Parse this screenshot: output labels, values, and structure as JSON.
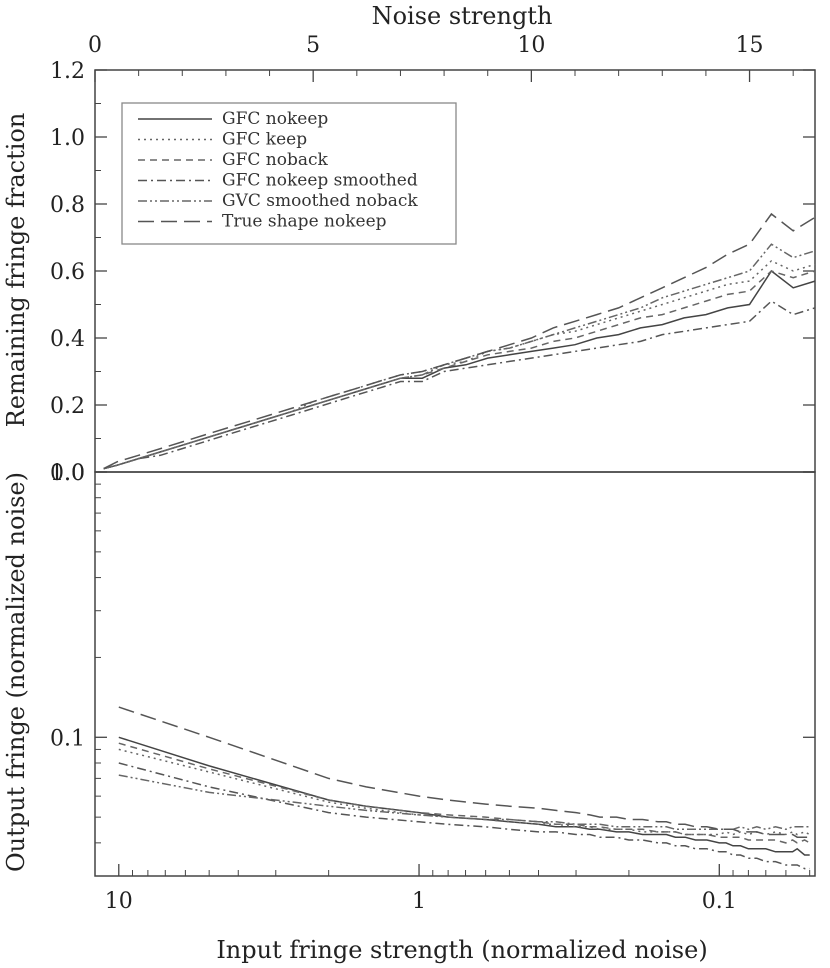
{
  "chart_data": [
    {
      "type": "line",
      "panel": "top",
      "top_axis": {
        "label": "Noise strength",
        "ticks": [
          0,
          5,
          10,
          15
        ],
        "range": [
          0,
          16.5
        ]
      },
      "ylabel": "Remaining fringe fraction",
      "ylim": [
        0,
        1.2
      ],
      "yticks": [
        0.0,
        0.2,
        0.4,
        0.6,
        0.8,
        1.0,
        1.2
      ],
      "ytick_labels": [
        "0.0",
        "0.2",
        "0.4",
        "0.6",
        "0.8",
        "1.0",
        "1.2"
      ],
      "legend_position": "top-left",
      "x": [
        0.2,
        0.5,
        1,
        1.5,
        2,
        2.5,
        3,
        3.5,
        4,
        4.5,
        5,
        5.5,
        6,
        6.5,
        7,
        7.5,
        8,
        8.5,
        9,
        9.5,
        10,
        10.5,
        11,
        11.5,
        12,
        12.5,
        13,
        13.5,
        14,
        14.5,
        15,
        15.5,
        16,
        16.5
      ],
      "series": [
        {
          "name": "GFC nokeep",
          "dash": "solid",
          "values": [
            0.01,
            0.02,
            0.04,
            0.06,
            0.08,
            0.1,
            0.12,
            0.14,
            0.16,
            0.18,
            0.2,
            0.22,
            0.24,
            0.26,
            0.28,
            0.28,
            0.31,
            0.32,
            0.34,
            0.35,
            0.36,
            0.37,
            0.38,
            0.4,
            0.41,
            0.43,
            0.44,
            0.46,
            0.47,
            0.49,
            0.5,
            0.6,
            0.55,
            0.57
          ]
        },
        {
          "name": "GFC keep",
          "dash": "dotted",
          "values": [
            0.01,
            0.02,
            0.04,
            0.06,
            0.08,
            0.1,
            0.12,
            0.14,
            0.16,
            0.18,
            0.21,
            0.23,
            0.25,
            0.27,
            0.29,
            0.3,
            0.32,
            0.33,
            0.36,
            0.37,
            0.39,
            0.41,
            0.42,
            0.44,
            0.46,
            0.48,
            0.5,
            0.52,
            0.54,
            0.56,
            0.57,
            0.63,
            0.6,
            0.62
          ]
        },
        {
          "name": "GFC noback",
          "dash": "dashed",
          "values": [
            0.01,
            0.02,
            0.04,
            0.06,
            0.08,
            0.1,
            0.12,
            0.14,
            0.16,
            0.18,
            0.2,
            0.22,
            0.24,
            0.26,
            0.28,
            0.29,
            0.31,
            0.33,
            0.35,
            0.36,
            0.37,
            0.39,
            0.4,
            0.42,
            0.44,
            0.46,
            0.47,
            0.49,
            0.51,
            0.53,
            0.54,
            0.6,
            0.58,
            0.6
          ]
        },
        {
          "name": "GFC nokeep smoothed",
          "dash": "dashdot",
          "values": [
            0.01,
            0.02,
            0.04,
            0.05,
            0.07,
            0.09,
            0.11,
            0.13,
            0.15,
            0.17,
            0.19,
            0.21,
            0.23,
            0.25,
            0.27,
            0.27,
            0.3,
            0.31,
            0.32,
            0.33,
            0.34,
            0.35,
            0.36,
            0.37,
            0.38,
            0.39,
            0.41,
            0.42,
            0.43,
            0.44,
            0.45,
            0.51,
            0.47,
            0.49
          ]
        },
        {
          "name": "GVC smoothed noback",
          "dash": "dashdotdot",
          "values": [
            0.01,
            0.02,
            0.04,
            0.06,
            0.08,
            0.1,
            0.12,
            0.14,
            0.16,
            0.18,
            0.2,
            0.22,
            0.24,
            0.26,
            0.28,
            0.29,
            0.32,
            0.34,
            0.36,
            0.37,
            0.39,
            0.41,
            0.43,
            0.45,
            0.47,
            0.49,
            0.52,
            0.54,
            0.56,
            0.58,
            0.6,
            0.68,
            0.64,
            0.66
          ]
        },
        {
          "name": "True shape nokeep",
          "dash": "longdash",
          "values": [
            0.01,
            0.03,
            0.05,
            0.07,
            0.09,
            0.11,
            0.13,
            0.15,
            0.17,
            0.19,
            0.21,
            0.23,
            0.25,
            0.27,
            0.29,
            0.3,
            0.32,
            0.34,
            0.36,
            0.38,
            0.4,
            0.43,
            0.45,
            0.47,
            0.49,
            0.52,
            0.55,
            0.58,
            0.61,
            0.65,
            0.68,
            0.77,
            0.72,
            0.76
          ]
        }
      ]
    },
    {
      "type": "line",
      "panel": "bottom",
      "xlabel": "Input fringe strength (normalized noise)",
      "ylabel": "Output fringe (normalized noise)",
      "y_scale": "log",
      "ylim": [
        0.03,
        1.0
      ],
      "yticks": [
        0.1,
        1.0
      ],
      "ytick_labels": [
        "0.1",
        "1.0"
      ],
      "xticks": [
        10,
        1,
        0.1
      ],
      "xtick_labels": [
        "10",
        "1",
        "0.1"
      ],
      "x": [
        10,
        5,
        2,
        1.5,
        1,
        0.8,
        0.6,
        0.5,
        0.4,
        0.35,
        0.3,
        0.27,
        0.25,
        0.22,
        0.2,
        0.18,
        0.16,
        0.15,
        0.14,
        0.13,
        0.12,
        0.11,
        0.1,
        0.095,
        0.09,
        0.085,
        0.08,
        0.075,
        0.07,
        0.065,
        0.06,
        0.057,
        0.055,
        0.052,
        0.05
      ],
      "series": [
        {
          "name": "GFC nokeep",
          "dash": "solid",
          "values": [
            0.1,
            0.078,
            0.058,
            0.055,
            0.052,
            0.05,
            0.049,
            0.048,
            0.047,
            0.046,
            0.046,
            0.045,
            0.045,
            0.044,
            0.044,
            0.043,
            0.043,
            0.043,
            0.042,
            0.042,
            0.041,
            0.041,
            0.04,
            0.04,
            0.039,
            0.039,
            0.038,
            0.038,
            0.038,
            0.037,
            0.037,
            0.037,
            0.038,
            0.036,
            0.036
          ]
        },
        {
          "name": "GFC keep",
          "dash": "dotted",
          "values": [
            0.09,
            0.074,
            0.057,
            0.054,
            0.051,
            0.05,
            0.049,
            0.048,
            0.047,
            0.047,
            0.046,
            0.046,
            0.045,
            0.045,
            0.045,
            0.044,
            0.044,
            0.044,
            0.044,
            0.043,
            0.043,
            0.043,
            0.043,
            0.044,
            0.043,
            0.044,
            0.043,
            0.044,
            0.043,
            0.044,
            0.043,
            0.044,
            0.043,
            0.044,
            0.043
          ]
        },
        {
          "name": "GFC noback",
          "dash": "dashed",
          "values": [
            0.095,
            0.076,
            0.058,
            0.055,
            0.052,
            0.051,
            0.05,
            0.049,
            0.048,
            0.047,
            0.047,
            0.046,
            0.046,
            0.045,
            0.045,
            0.045,
            0.044,
            0.044,
            0.044,
            0.043,
            0.043,
            0.043,
            0.042,
            0.042,
            0.042,
            0.042,
            0.041,
            0.041,
            0.041,
            0.041,
            0.04,
            0.041,
            0.04,
            0.041,
            0.04
          ]
        },
        {
          "name": "GFC nokeep smoothed",
          "dash": "dashdot",
          "values": [
            0.08,
            0.065,
            0.052,
            0.05,
            0.048,
            0.047,
            0.046,
            0.045,
            0.044,
            0.044,
            0.043,
            0.043,
            0.042,
            0.042,
            0.041,
            0.041,
            0.04,
            0.04,
            0.039,
            0.039,
            0.038,
            0.038,
            0.037,
            0.037,
            0.036,
            0.036,
            0.035,
            0.035,
            0.034,
            0.034,
            0.033,
            0.033,
            0.033,
            0.032,
            0.032
          ]
        },
        {
          "name": "GVC smoothed noback",
          "dash": "dashdotdot",
          "values": [
            0.072,
            0.062,
            0.055,
            0.053,
            0.051,
            0.05,
            0.049,
            0.049,
            0.048,
            0.048,
            0.047,
            0.047,
            0.047,
            0.046,
            0.046,
            0.046,
            0.046,
            0.046,
            0.045,
            0.045,
            0.045,
            0.045,
            0.045,
            0.045,
            0.045,
            0.046,
            0.045,
            0.046,
            0.045,
            0.046,
            0.045,
            0.046,
            0.046,
            0.046,
            0.046
          ]
        },
        {
          "name": "True shape nokeep",
          "dash": "longdash",
          "values": [
            0.13,
            0.1,
            0.07,
            0.065,
            0.06,
            0.058,
            0.056,
            0.055,
            0.054,
            0.053,
            0.052,
            0.051,
            0.05,
            0.05,
            0.049,
            0.049,
            0.048,
            0.048,
            0.047,
            0.047,
            0.046,
            0.046,
            0.045,
            0.045,
            0.045,
            0.044,
            0.044,
            0.044,
            0.043,
            0.043,
            0.043,
            0.043,
            0.042,
            0.042,
            0.042
          ]
        }
      ]
    }
  ]
}
